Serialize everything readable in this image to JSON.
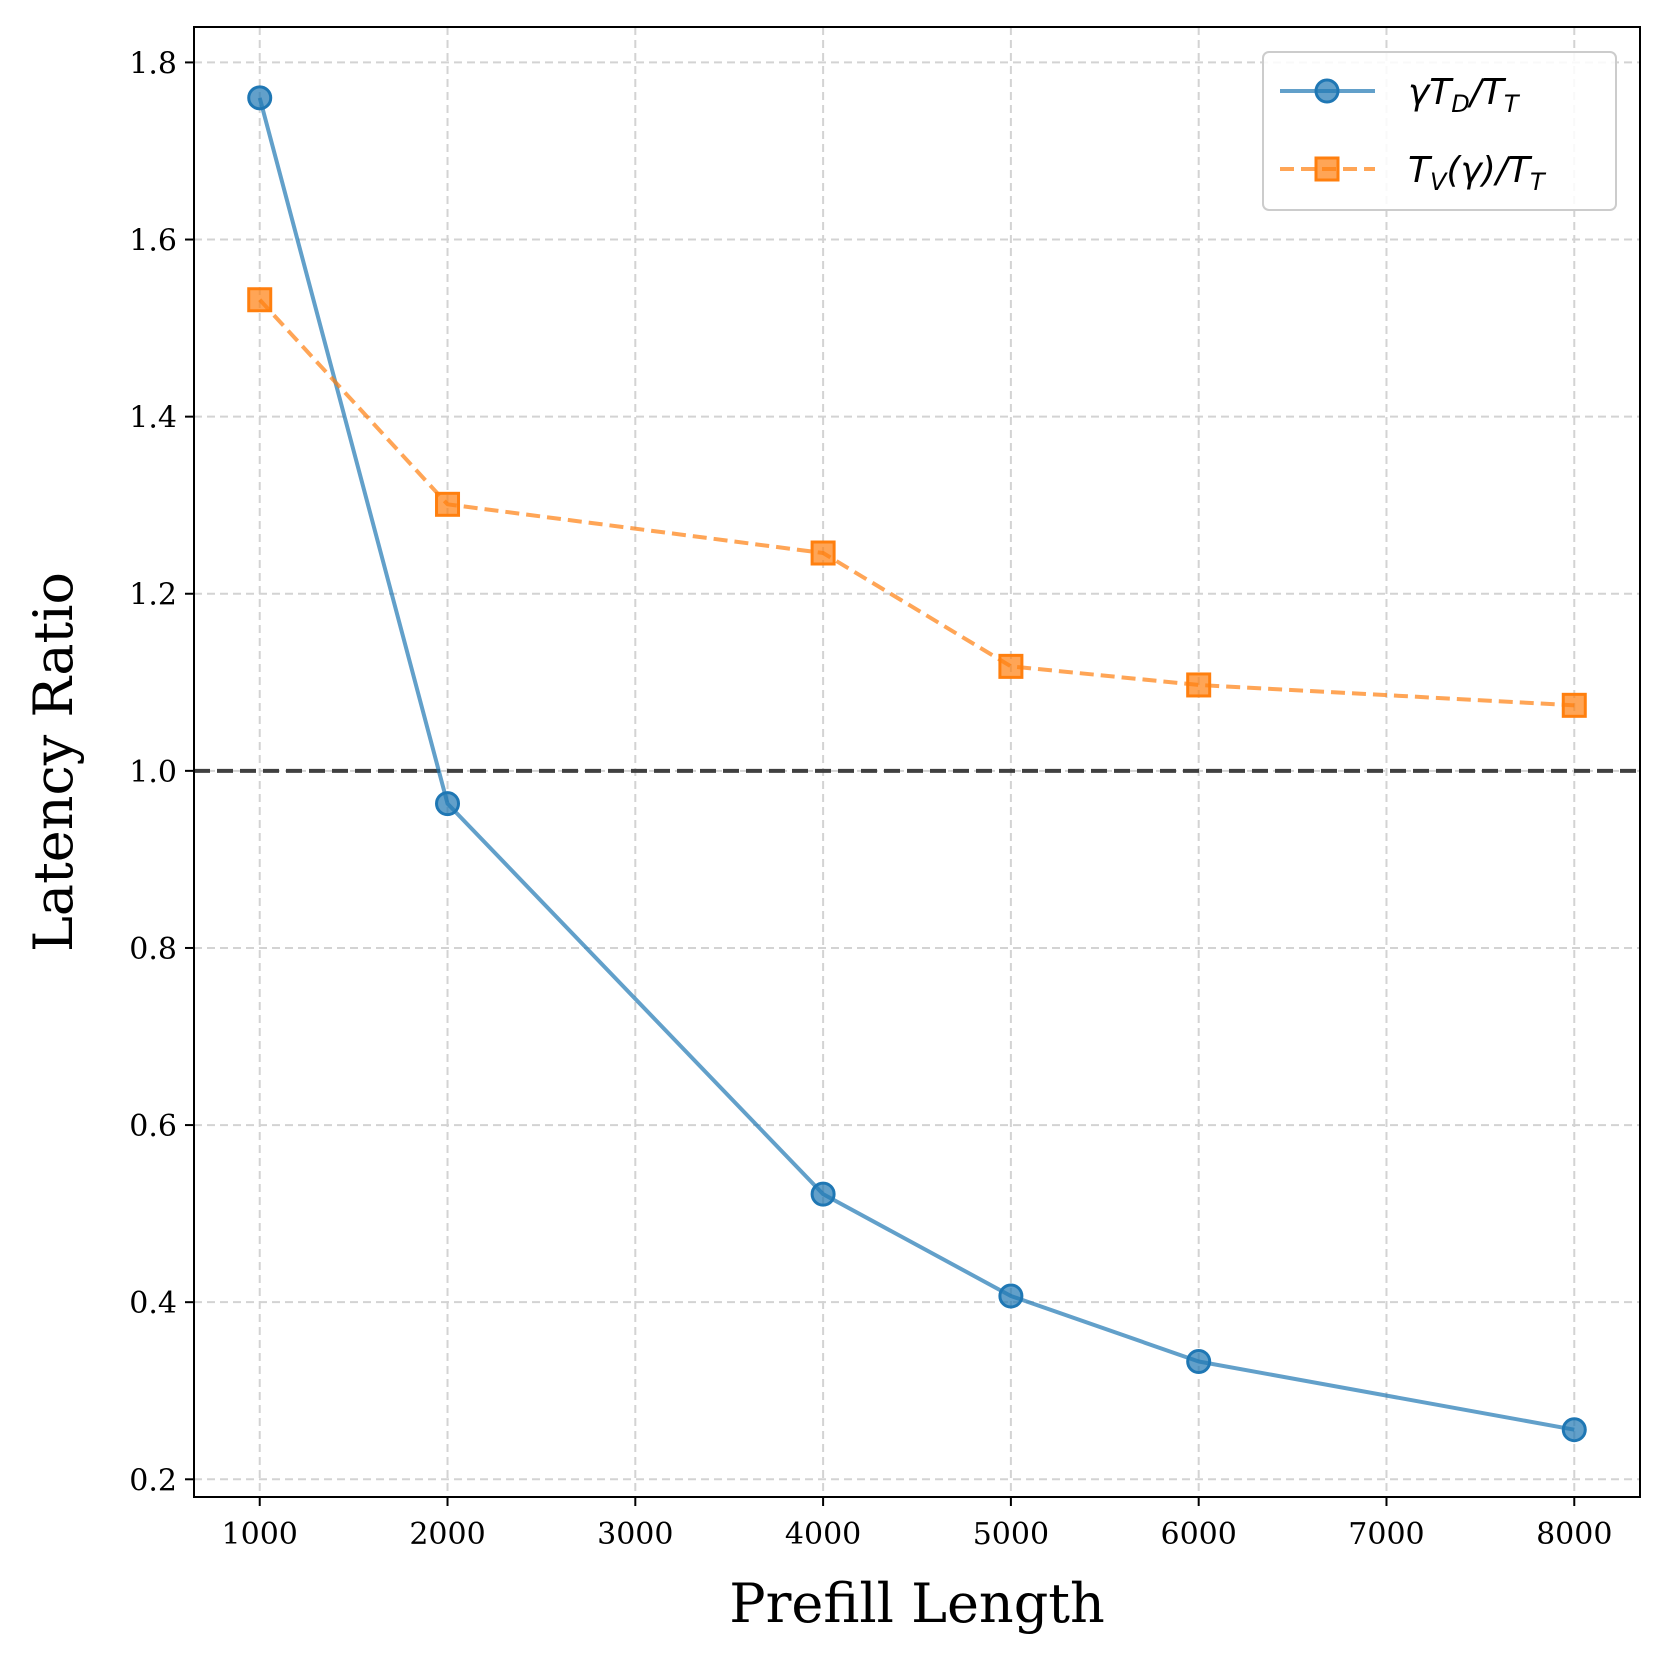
{
  "chart_data": {
    "type": "line",
    "title": "",
    "xlabel": "Prefill Length",
    "ylabel": "Latency Ratio",
    "x": [
      1000,
      2000,
      4000,
      5000,
      6000,
      8000
    ],
    "xlim": [
      650,
      8350
    ],
    "ylim": [
      0.18,
      1.84
    ],
    "x_ticks": [
      1000,
      2000,
      3000,
      4000,
      5000,
      6000,
      7000,
      8000
    ],
    "x_tick_labels": [
      "1000",
      "2000",
      "3000",
      "4000",
      "5000",
      "6000",
      "7000",
      "8000"
    ],
    "y_ticks": [
      0.2,
      0.4,
      0.6,
      0.8,
      1.0,
      1.2,
      1.4,
      1.6,
      1.8
    ],
    "y_tick_labels": [
      "0.2",
      "0.4",
      "0.6",
      "0.8",
      "1.0",
      "1.2",
      "1.4",
      "1.6",
      "1.8"
    ],
    "grid": true,
    "legend_position": "top-right",
    "reference_line": {
      "y": 1.0,
      "style": "dashed",
      "color": "#404040"
    },
    "series": [
      {
        "name": "γT_D/T_T",
        "label_main": "γT",
        "label_sub1": "D",
        "label_mid": "/T",
        "label_sub2": "T",
        "values": [
          1.76,
          0.963,
          0.522,
          0.407,
          0.333,
          0.256
        ],
        "color": "#1f77b4",
        "line_style": "solid",
        "marker": "circle"
      },
      {
        "name": "T_V(γ)/T_T",
        "label_main": "T",
        "label_sub1": "V",
        "label_mid": "(γ)/T",
        "label_sub2": "T",
        "values": [
          1.532,
          1.301,
          1.246,
          1.118,
          1.097,
          1.074
        ],
        "color": "#ff7f0e",
        "line_style": "dashed",
        "marker": "square"
      }
    ]
  }
}
